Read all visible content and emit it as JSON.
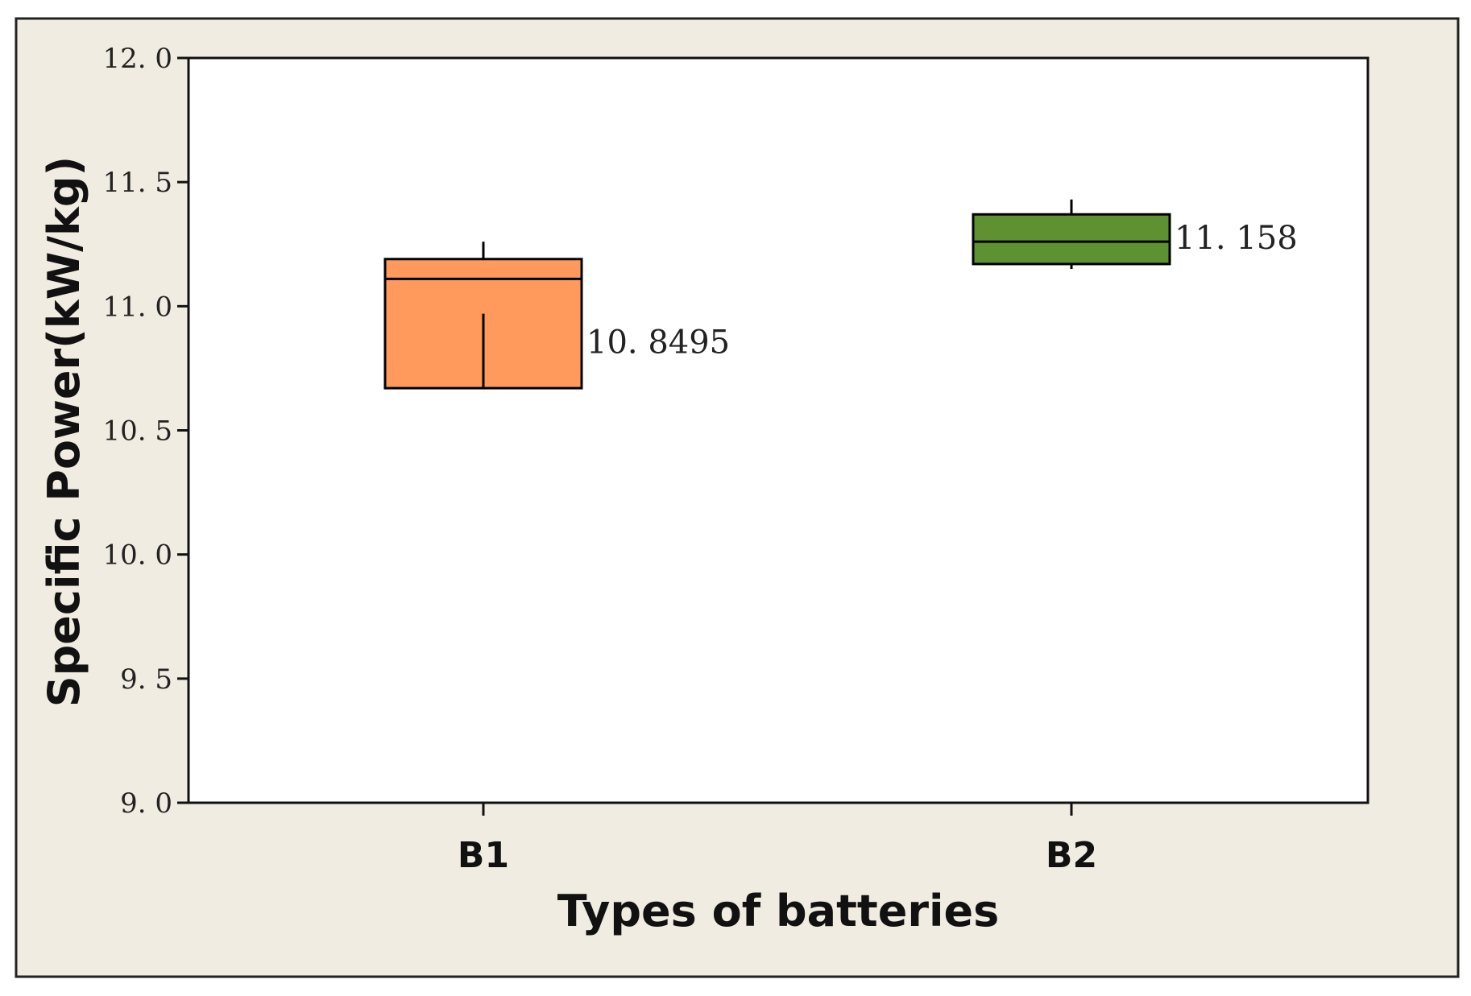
{
  "chart_data": {
    "type": "box",
    "xlabel": "Types of batteries",
    "ylabel": "Specific Power(kW/kg)",
    "ylim": [
      9.0,
      12.0
    ],
    "yticks": [
      9.0,
      9.5,
      10.0,
      10.5,
      11.0,
      11.5,
      12.0
    ],
    "ytick_labels": [
      "9. 0",
      "9. 5",
      "10. 0",
      "10. 5",
      "11. 0",
      "11. 5",
      "12. 0"
    ],
    "grid": false,
    "categories": [
      "B1",
      "B2"
    ],
    "series": [
      {
        "category": "B1",
        "whisker_low": 10.67,
        "q1": 10.67,
        "median": 11.11,
        "q3": 11.19,
        "whisker_high": 11.26,
        "inner_line_top": 10.97,
        "label": "10. 8495",
        "color": "#FF9A5C"
      },
      {
        "category": "B2",
        "whisker_low": 11.15,
        "q1": 11.17,
        "median": 11.26,
        "q3": 11.37,
        "whisker_high": 11.43,
        "label": "11. 158",
        "color": "#5E9132"
      }
    ]
  },
  "colors": {
    "panel_background": "#F1ECE2",
    "plot_background": "#FFFFFF",
    "axis": "#111111"
  }
}
